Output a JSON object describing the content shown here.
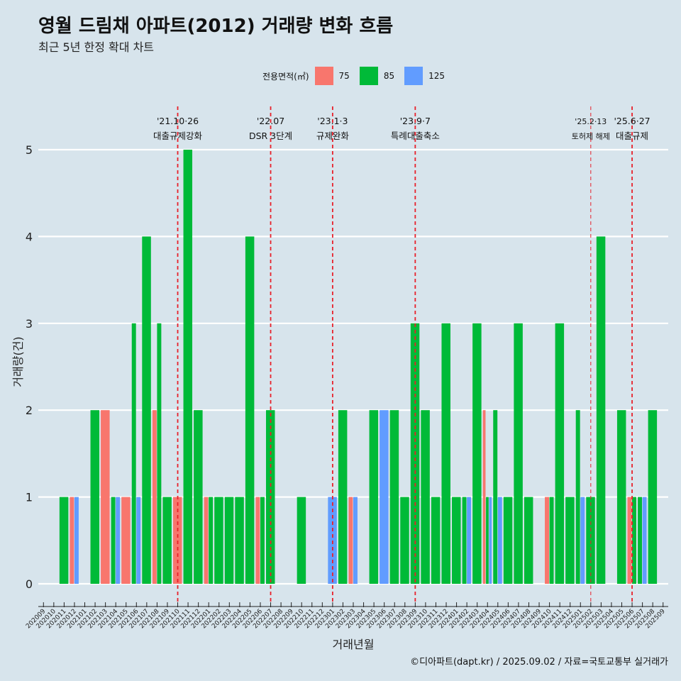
{
  "header": {
    "title": "영월 드림채 아파트(2012) 거래량 변화 흐름",
    "subtitle": "최근 5년 한정 확대 차트"
  },
  "legend": {
    "title": "전용면적(㎡)",
    "items": [
      {
        "label": "75",
        "color": "#f8766d"
      },
      {
        "label": "85",
        "color": "#00ba38"
      },
      {
        "label": "125",
        "color": "#619cff"
      }
    ]
  },
  "caption": "©디아파트(dapt.kr) / 2025.09.02 / 자료=국토교통부 실거래가",
  "chart_data": {
    "type": "bar",
    "xlabel": "거래년월",
    "ylabel": "거래량(건)",
    "ylim": [
      0,
      5
    ],
    "yticks": [
      0,
      1,
      2,
      3,
      4,
      5
    ],
    "grid": true,
    "legend_position": "top",
    "categories": [
      "202009",
      "202010",
      "202011",
      "202012",
      "202101",
      "202102",
      "202103",
      "202104",
      "202105",
      "202106",
      "202107",
      "202108",
      "202109",
      "202110",
      "202111",
      "202112",
      "202201",
      "202202",
      "202203",
      "202204",
      "202205",
      "202206",
      "202207",
      "202208",
      "202209",
      "202210",
      "202211",
      "202212",
      "202301",
      "202302",
      "202303",
      "202304",
      "202305",
      "202306",
      "202307",
      "202308",
      "202309",
      "202310",
      "202311",
      "202312",
      "202401",
      "202402",
      "202403",
      "202404",
      "202405",
      "202406",
      "202407",
      "202408",
      "202409",
      "202410",
      "202411",
      "202412",
      "202501",
      "202502",
      "202503",
      "202504",
      "202505",
      "202506",
      "202507",
      "202508",
      "202509"
    ],
    "series": [
      {
        "name": "75",
        "color": "#f8766d",
        "values": [
          0,
          0,
          0,
          1,
          0,
          0,
          2,
          0,
          1,
          0,
          0,
          2,
          0,
          1,
          0,
          0,
          1,
          0,
          0,
          0,
          0,
          1,
          0,
          0,
          0,
          0,
          0,
          0,
          0,
          0,
          1,
          0,
          0,
          0,
          0,
          0,
          0,
          0,
          0,
          0,
          0,
          0,
          0,
          2,
          0,
          0,
          0,
          0,
          0,
          1,
          0,
          0,
          0,
          0,
          0,
          0,
          0,
          1,
          0,
          0,
          0
        ]
      },
      {
        "name": "85",
        "color": "#00ba38",
        "values": [
          0,
          0,
          1,
          0,
          0,
          2,
          0,
          1,
          0,
          3,
          4,
          3,
          1,
          0,
          5,
          2,
          1,
          1,
          1,
          1,
          4,
          1,
          2,
          0,
          0,
          1,
          0,
          0,
          0,
          2,
          0,
          0,
          2,
          0,
          2,
          1,
          3,
          2,
          1,
          3,
          1,
          1,
          3,
          1,
          2,
          1,
          3,
          1,
          0,
          1,
          3,
          1,
          2,
          1,
          4,
          0,
          2,
          1,
          1,
          2,
          0
        ]
      },
      {
        "name": "125",
        "color": "#619cff",
        "values": [
          0,
          0,
          0,
          1,
          0,
          0,
          0,
          1,
          0,
          1,
          0,
          0,
          0,
          0,
          0,
          0,
          0,
          0,
          0,
          0,
          0,
          0,
          0,
          0,
          0,
          0,
          0,
          0,
          1,
          0,
          1,
          0,
          0,
          2,
          0,
          0,
          0,
          0,
          0,
          0,
          0,
          1,
          0,
          1,
          1,
          0,
          0,
          0,
          0,
          0,
          0,
          0,
          1,
          0,
          0,
          0,
          0,
          0,
          1,
          0,
          0
        ]
      }
    ],
    "annotations": [
      {
        "date": "'21.10·26",
        "label": "대출규제강화",
        "x": "202110"
      },
      {
        "date": "'22.07",
        "label": "DSR 3단계",
        "x": "202207"
      },
      {
        "date": "'23.1·3",
        "label": "규제완화",
        "x": "202301"
      },
      {
        "date": "'23.9·7",
        "label": "특례대출축소",
        "x": "202309"
      },
      {
        "date": "'25.2·13",
        "label": "토허제 해제",
        "x": "202502"
      },
      {
        "date": "'25.6·27",
        "label": "대출규제",
        "x": "202506"
      }
    ]
  }
}
